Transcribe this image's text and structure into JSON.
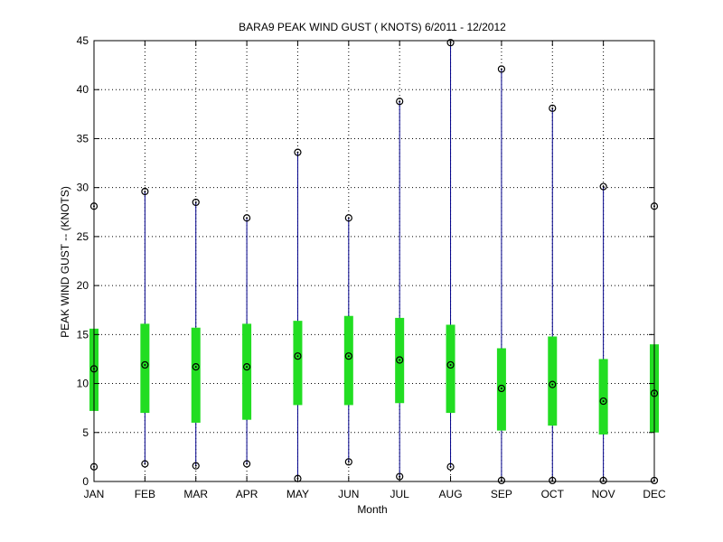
{
  "chart_data": {
    "type": "box",
    "title": "BARA9  PEAK WIND GUST ( KNOTS) 6/2011 - 12/2012",
    "xlabel": "Month",
    "ylabel": "PEAK WIND GUST -- (KNOTS)",
    "ylim": [
      0,
      45
    ],
    "yticks": [
      "0",
      "5",
      "10",
      "15",
      "20",
      "25",
      "30",
      "35",
      "40",
      "45"
    ],
    "grid": true,
    "categories": [
      "JAN",
      "FEB",
      "MAR",
      "APR",
      "MAY",
      "JUN",
      "JUL",
      "AUG",
      "SEP",
      "OCT",
      "NOV",
      "DEC"
    ],
    "series": [
      {
        "min": [
          1.5,
          1.8,
          1.6,
          1.8,
          0.3,
          2.0,
          0.5,
          1.5,
          0.1,
          0.1,
          0.1,
          0.1
        ]
      },
      {
        "q1": [
          7.2,
          7.0,
          6.0,
          6.3,
          7.8,
          7.8,
          8.0,
          7.0,
          5.2,
          5.7,
          4.8,
          5.0
        ]
      },
      {
        "median": [
          11.5,
          11.9,
          11.7,
          11.7,
          12.8,
          12.8,
          12.4,
          11.9,
          9.5,
          9.9,
          8.2,
          9.0
        ]
      },
      {
        "q3": [
          15.6,
          16.1,
          15.7,
          16.1,
          16.4,
          16.9,
          16.7,
          16.0,
          13.6,
          14.8,
          12.5,
          14.0
        ]
      },
      {
        "max": [
          28.1,
          29.6,
          28.5,
          26.9,
          33.6,
          26.9,
          38.8,
          44.8,
          42.1,
          38.1,
          30.1,
          28.1
        ]
      }
    ],
    "colors": {
      "whisker": "#00008b",
      "box": "#22dd22",
      "marker": "#000000",
      "grid": "#000000",
      "axis": "#000000"
    }
  }
}
